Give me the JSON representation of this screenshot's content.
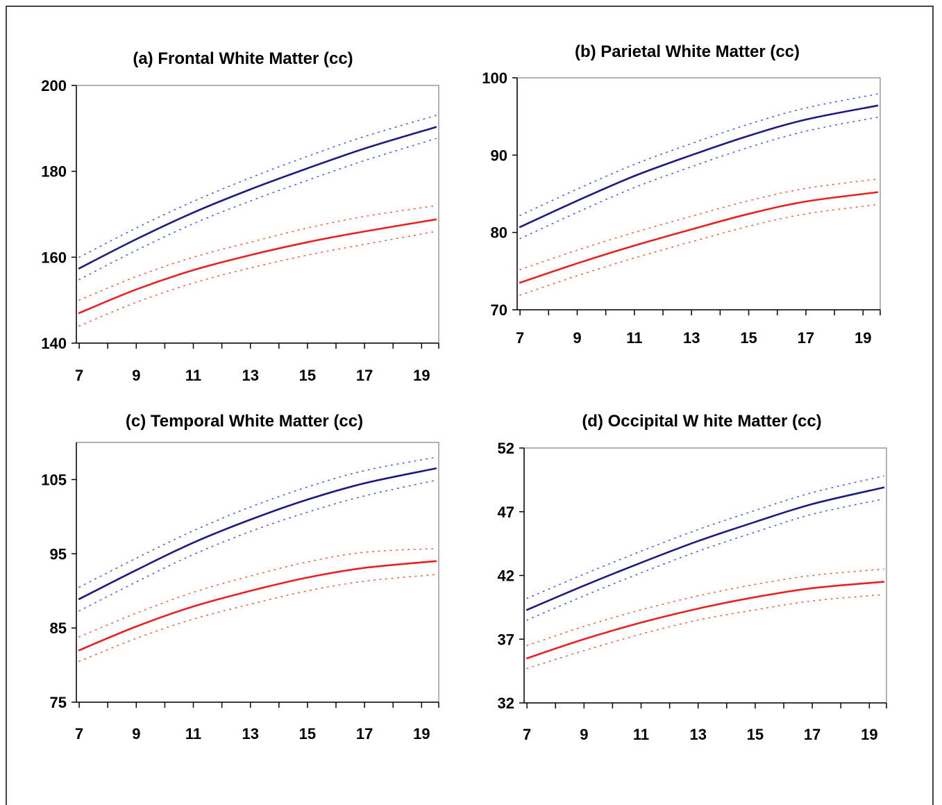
{
  "chart_data": [
    {
      "type": "line",
      "title": "(a) Frontal White Matter (cc)",
      "xlim": [
        6.9,
        19.6
      ],
      "ylim": [
        140,
        200
      ],
      "xticks": [
        7,
        9,
        11,
        13,
        15,
        17,
        19
      ],
      "yticks": [
        140,
        160,
        180,
        200
      ],
      "x": [
        7,
        9,
        11,
        13,
        15,
        17,
        19.5
      ],
      "series": [
        {
          "color": "#1a1a80",
          "style": "solid",
          "values": [
            157.4,
            164.2,
            170.4,
            175.8,
            180.7,
            185.3,
            190.3
          ]
        },
        {
          "color": "#4a5af0",
          "style": "dotted",
          "values": [
            160.0,
            166.8,
            173.0,
            178.5,
            183.5,
            188.1,
            193.0
          ]
        },
        {
          "color": "#4a5af0",
          "style": "dotted",
          "values": [
            154.8,
            161.6,
            167.8,
            173.1,
            177.9,
            182.5,
            187.6
          ]
        },
        {
          "color": "#e82020",
          "style": "solid",
          "values": [
            147.0,
            152.5,
            157.0,
            160.5,
            163.5,
            166.0,
            168.8
          ]
        },
        {
          "color": "#f06030",
          "style": "dotted",
          "values": [
            150.0,
            155.5,
            160.0,
            163.5,
            166.8,
            169.5,
            172.0
          ]
        },
        {
          "color": "#f06030",
          "style": "dotted",
          "values": [
            144.0,
            149.5,
            154.0,
            157.5,
            160.5,
            163.0,
            166.0
          ]
        }
      ]
    },
    {
      "type": "line",
      "title": "(b) Parietal White Matter (cc)",
      "xlim": [
        6.9,
        19.6
      ],
      "ylim": [
        70,
        100
      ],
      "xticks": [
        7,
        9,
        11,
        13,
        15,
        17,
        19
      ],
      "yticks": [
        70,
        80,
        90,
        100
      ],
      "x": [
        7,
        9,
        11,
        13,
        15,
        17,
        19.5
      ],
      "series": [
        {
          "color": "#1a1a80",
          "style": "solid",
          "values": [
            80.7,
            84.1,
            87.3,
            90.0,
            92.5,
            94.6,
            96.4
          ]
        },
        {
          "color": "#4a5af0",
          "style": "dotted",
          "values": [
            82.2,
            85.6,
            88.8,
            91.5,
            94.0,
            96.1,
            97.9
          ]
        },
        {
          "color": "#4a5af0",
          "style": "dotted",
          "values": [
            79.2,
            82.6,
            85.8,
            88.5,
            91.0,
            93.1,
            94.9
          ]
        },
        {
          "color": "#e82020",
          "style": "solid",
          "values": [
            73.5,
            76.0,
            78.3,
            80.4,
            82.4,
            84.0,
            85.2
          ]
        },
        {
          "color": "#f06030",
          "style": "dotted",
          "values": [
            75.2,
            77.7,
            80.0,
            82.1,
            84.1,
            85.7,
            86.9
          ]
        },
        {
          "color": "#f06030",
          "style": "dotted",
          "values": [
            71.9,
            74.4,
            76.7,
            78.8,
            80.8,
            82.4,
            83.6
          ]
        }
      ]
    },
    {
      "type": "line",
      "title": "(c) Temporal White Matter (cc)",
      "xlim": [
        6.9,
        19.6
      ],
      "ylim": [
        75,
        110
      ],
      "xticks": [
        7,
        9,
        11,
        13,
        15,
        17,
        19
      ],
      "yticks": [
        75,
        85,
        95,
        105
      ],
      "x": [
        7,
        9,
        11,
        13,
        15,
        17,
        19.5
      ],
      "series": [
        {
          "color": "#1a1a80",
          "style": "solid",
          "values": [
            88.9,
            92.8,
            96.5,
            99.6,
            102.3,
            104.5,
            106.5
          ]
        },
        {
          "color": "#4a5af0",
          "style": "dotted",
          "values": [
            90.5,
            94.4,
            98.1,
            101.3,
            104.0,
            106.2,
            108.0
          ]
        },
        {
          "color": "#4a5af0",
          "style": "dotted",
          "values": [
            87.3,
            91.2,
            94.9,
            98.0,
            100.6,
            102.8,
            104.9
          ]
        },
        {
          "color": "#e82020",
          "style": "solid",
          "values": [
            82.0,
            85.2,
            87.9,
            90.0,
            91.8,
            93.1,
            94.0
          ]
        },
        {
          "color": "#f06030",
          "style": "dotted",
          "values": [
            83.8,
            87.0,
            89.8,
            92.0,
            93.9,
            95.2,
            95.7
          ]
        },
        {
          "color": "#f06030",
          "style": "dotted",
          "values": [
            80.5,
            83.6,
            86.2,
            88.2,
            90.0,
            91.3,
            92.2
          ]
        }
      ]
    },
    {
      "type": "line",
      "title": "(d) Occipital W hite Matter (cc)",
      "xlim": [
        6.9,
        19.6
      ],
      "ylim": [
        32,
        52
      ],
      "xticks": [
        7,
        9,
        11,
        13,
        15,
        17,
        19
      ],
      "yticks": [
        32,
        37,
        42,
        47,
        52
      ],
      "x": [
        7,
        9,
        11,
        13,
        15,
        17,
        19.5
      ],
      "series": [
        {
          "color": "#1a1a80",
          "style": "solid",
          "values": [
            39.3,
            41.2,
            43.0,
            44.7,
            46.2,
            47.6,
            48.9
          ]
        },
        {
          "color": "#4a5af0",
          "style": "dotted",
          "values": [
            40.2,
            42.1,
            43.9,
            45.6,
            47.1,
            48.5,
            49.8
          ]
        },
        {
          "color": "#4a5af0",
          "style": "dotted",
          "values": [
            38.5,
            40.4,
            42.2,
            43.9,
            45.4,
            46.8,
            48.0
          ]
        },
        {
          "color": "#e82020",
          "style": "solid",
          "values": [
            35.5,
            37.0,
            38.3,
            39.4,
            40.3,
            41.0,
            41.5
          ]
        },
        {
          "color": "#f06030",
          "style": "dotted",
          "values": [
            36.5,
            38.0,
            39.3,
            40.4,
            41.3,
            42.0,
            42.5
          ]
        },
        {
          "color": "#f06030",
          "style": "dotted",
          "values": [
            34.7,
            36.1,
            37.4,
            38.5,
            39.3,
            40.0,
            40.5
          ]
        }
      ]
    }
  ]
}
